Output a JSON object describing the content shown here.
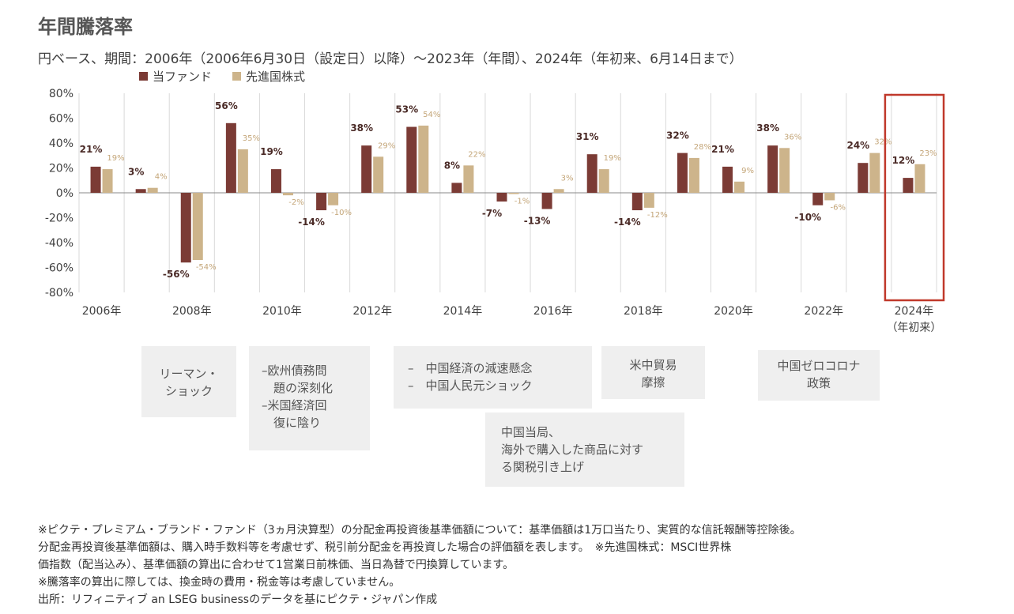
{
  "header": {
    "title": "年間騰落率",
    "subtitle": "円ベース、期間：2006年（2006年6月30日（設定日）以降）～2023年（年間）、2024年（年初来、6月14日まで）"
  },
  "colors": {
    "fund": "#7b3b35",
    "benchmark": "#cdb48b",
    "highlight": "#c0392b",
    "axis": "#888888",
    "grid": "#d9d9d9"
  },
  "chart_data": {
    "type": "bar",
    "categories": [
      "2006年",
      "2007年",
      "2008年",
      "2009年",
      "2010年",
      "2011年",
      "2012年",
      "2013年",
      "2014年",
      "2015年",
      "2016年",
      "2017年",
      "2018年",
      "2019年",
      "2020年",
      "2021年",
      "2022年",
      "2023年",
      "2024年"
    ],
    "x_tick_labels": [
      "2006年",
      "2008年",
      "2010年",
      "2012年",
      "2014年",
      "2016年",
      "2018年",
      "2020年",
      "2022年",
      "2024年"
    ],
    "x_tick_sublabel": "（年初来）",
    "series": [
      {
        "name": "当ファンド",
        "values": [
          21,
          3,
          -56,
          56,
          19,
          -14,
          38,
          53,
          8,
          -7,
          -13,
          31,
          -14,
          32,
          21,
          38,
          -10,
          24,
          12
        ]
      },
      {
        "name": "先進国株式",
        "values": [
          19,
          4,
          -54,
          35,
          -2,
          -10,
          29,
          54,
          22,
          -1,
          3,
          19,
          -12,
          28,
          9,
          36,
          -6,
          32,
          23
        ]
      }
    ],
    "ylim": [
      -80,
      80
    ],
    "yticks": [
      -80,
      -60,
      -40,
      -20,
      0,
      20,
      40,
      60,
      80
    ],
    "y_tick_suffix": "%",
    "grid": "vertical lines between years",
    "legend": "top-left",
    "highlight_category": "2024年"
  },
  "events": [
    {
      "lines": [
        "リーマン・",
        "ショック"
      ]
    },
    {
      "lines": [
        "–欧州債務問",
        "　題の深刻化",
        "–米国経済回",
        "　復に陰り"
      ]
    },
    {
      "lines": [
        "–　中国経済の減速懸念",
        "–　中国人民元ショック"
      ]
    },
    {
      "lines": [
        "中国当局、",
        "海外で購入した商品に対す",
        "る関税引き上げ"
      ]
    },
    {
      "lines": [
        "米中貿易",
        "摩擦"
      ]
    },
    {
      "lines": [
        "中国ゼロコロナ",
        "政策"
      ]
    }
  ],
  "notes": [
    "※ピクテ・プレミアム・ブランド・ファンド（3ヵ月決算型）の分配金再投資後基準価額について：基準価額は1万口当たり、実質的な信託報酬等控除後。",
    "分配金再投資後基準価額は、購入時手数料等を考慮せず、税引前分配金を再投資した場合の評価額を表します。　※先進国株式：MSCI世界株",
    "価指数（配当込み）、基準価額の算出に合わせて1営業日前株価、当日為替で円換算しています。",
    "※騰落率の算出に際しては、換金時の費用・税金等は考慮していません。",
    "出所：リフィニティブ an LSEG businessのデータを基にピクテ・ジャパン作成"
  ]
}
